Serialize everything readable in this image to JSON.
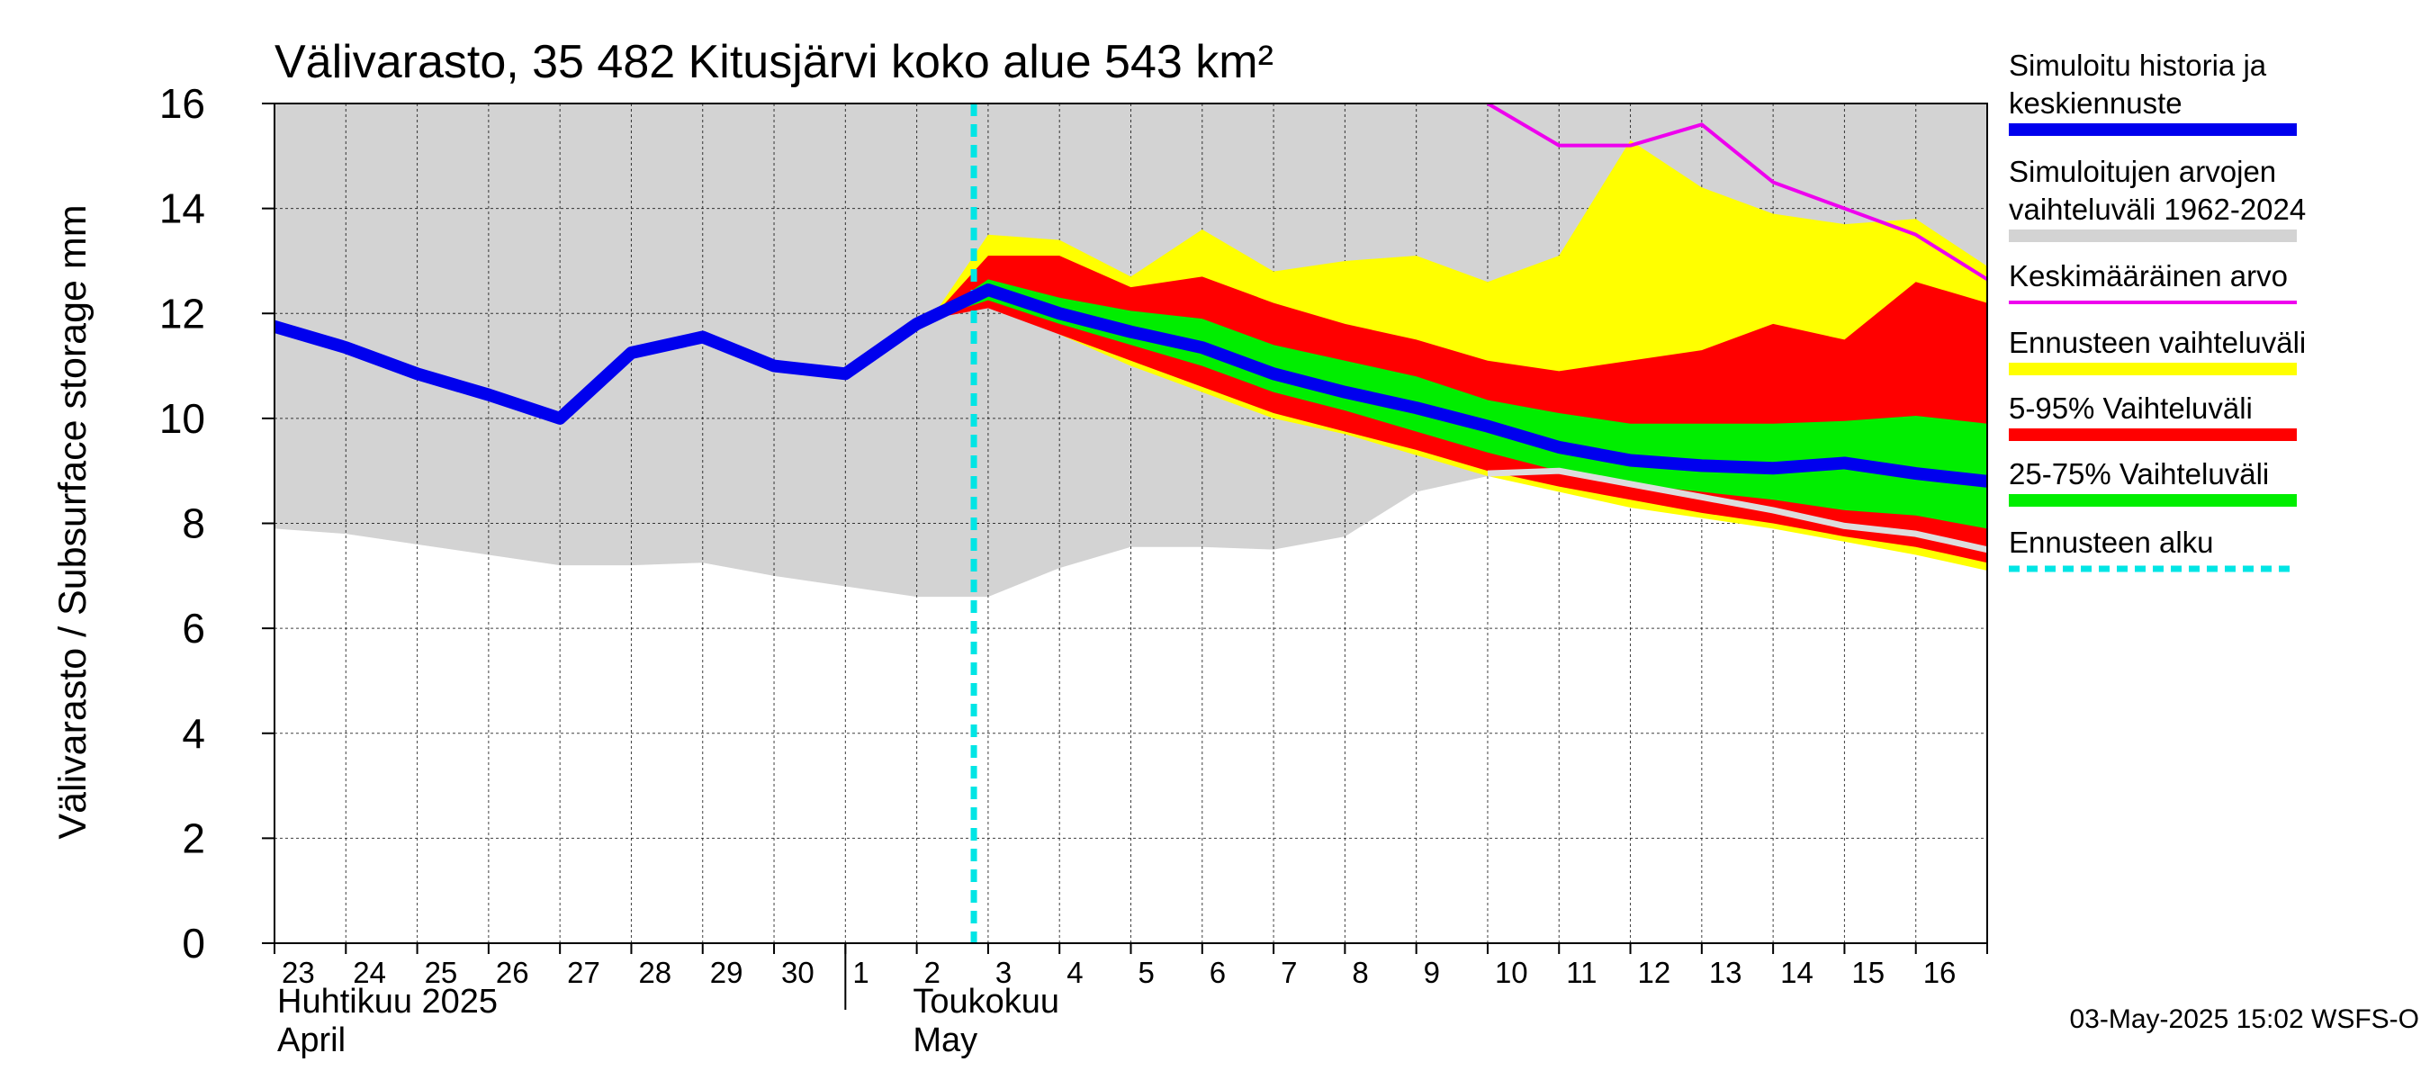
{
  "chart_data": {
    "type": "area",
    "title": "Välivarasto, 35 482 Kitusjärvi koko alue 543 km²",
    "ylabel": "Välivarasto / Subsurface storage  mm",
    "ylim": [
      0,
      16
    ],
    "yticks": [
      0,
      2,
      4,
      6,
      8,
      10,
      12,
      14,
      16
    ],
    "grid": true,
    "x_start_day": 23,
    "x_end_day": 47,
    "x_tick_labels": [
      "23",
      "24",
      "25",
      "26",
      "27",
      "28",
      "29",
      "30",
      "1",
      "2",
      "3",
      "4",
      "5",
      "6",
      "7",
      "8",
      "9",
      "10",
      "11",
      "12",
      "13",
      "14",
      "15",
      "16"
    ],
    "month_labels": [
      {
        "fi": "Huhtikuu  2025",
        "en": "April"
      },
      {
        "fi": "Toukokuu",
        "en": "May"
      }
    ],
    "forecast_start_day": 32.8,
    "history_range": {
      "x": [
        23,
        24,
        25,
        26,
        27,
        28,
        29,
        30,
        31,
        32,
        33,
        34,
        35,
        36,
        37,
        38,
        39,
        40,
        41,
        42,
        43,
        44,
        45,
        46,
        47
      ],
      "lower": [
        7.9,
        7.8,
        7.6,
        7.4,
        7.2,
        7.2,
        7.25,
        7.0,
        6.8,
        6.6,
        6.6,
        7.15,
        7.55,
        7.55,
        7.5,
        7.75,
        8.6,
        8.9,
        9.0,
        8.85,
        8.65,
        8.45,
        8.15,
        7.8,
        7.5
      ],
      "upper": [
        16,
        16,
        16,
        16,
        16,
        16,
        16,
        16,
        16,
        16,
        16,
        16,
        16,
        16,
        16,
        16,
        16,
        16,
        16,
        16,
        16,
        16,
        16,
        16,
        16
      ]
    },
    "forecast_range": {
      "x": [
        32.2,
        33,
        34,
        35,
        36,
        37,
        38,
        39,
        40,
        41,
        42,
        43,
        44,
        45,
        46,
        47
      ],
      "lower": [
        11.9,
        12.2,
        11.6,
        11.0,
        10.5,
        10.0,
        9.7,
        9.3,
        8.9,
        8.6,
        8.3,
        8.1,
        7.9,
        7.65,
        7.4,
        7.1
      ],
      "upper": [
        11.9,
        13.5,
        13.4,
        12.7,
        13.6,
        12.8,
        13.0,
        13.1,
        12.6,
        13.1,
        15.3,
        14.4,
        13.9,
        13.7,
        13.8,
        12.9
      ]
    },
    "band_5_95": {
      "x": [
        32.2,
        33,
        34,
        35,
        36,
        37,
        38,
        39,
        40,
        41,
        42,
        43,
        44,
        45,
        46,
        47
      ],
      "lower": [
        11.9,
        12.1,
        11.6,
        11.1,
        10.6,
        10.1,
        9.75,
        9.4,
        9.0,
        8.7,
        8.45,
        8.2,
        8.0,
        7.75,
        7.55,
        7.25
      ],
      "upper": [
        11.9,
        13.1,
        13.1,
        12.5,
        12.7,
        12.2,
        11.8,
        11.5,
        11.1,
        10.9,
        11.1,
        11.3,
        11.8,
        11.5,
        12.6,
        12.2
      ]
    },
    "band_25_75": {
      "x": [
        32.2,
        33,
        34,
        35,
        36,
        37,
        38,
        39,
        40,
        41,
        42,
        43,
        44,
        45,
        46,
        47
      ],
      "lower": [
        11.9,
        12.25,
        11.8,
        11.4,
        11.0,
        10.5,
        10.15,
        9.75,
        9.35,
        9.0,
        8.75,
        8.6,
        8.45,
        8.25,
        8.15,
        7.9
      ],
      "upper": [
        11.9,
        12.65,
        12.3,
        12.05,
        11.9,
        11.4,
        11.1,
        10.8,
        10.35,
        10.1,
        9.9,
        9.9,
        9.9,
        9.95,
        10.05,
        9.9
      ]
    },
    "series": [
      {
        "name": "Simuloitu historia ja keskiennuste",
        "color": "#0000ee",
        "x": [
          23,
          24,
          25,
          26,
          27,
          28,
          29,
          30,
          31,
          32,
          33,
          34,
          35,
          36,
          37,
          38,
          39,
          40,
          41,
          42,
          43,
          44,
          45,
          46,
          47
        ],
        "y": [
          11.75,
          11.35,
          10.85,
          10.45,
          10.0,
          11.25,
          11.55,
          11.0,
          10.85,
          11.8,
          12.45,
          12.0,
          11.65,
          11.35,
          10.85,
          10.5,
          10.2,
          9.85,
          9.45,
          9.2,
          9.1,
          9.05,
          9.15,
          8.95,
          8.8
        ]
      },
      {
        "name": "Keskimääräinen arvo",
        "color": "#ee00ee",
        "x": [
          40,
          41,
          42,
          43,
          44,
          45,
          46,
          47
        ],
        "y": [
          16.0,
          15.2,
          15.2,
          15.6,
          14.5,
          14.0,
          13.5,
          12.65
        ]
      },
      {
        "name": "Median path",
        "color": "#dddddd",
        "x": [
          40,
          41,
          42,
          43,
          44,
          45,
          46,
          47
        ],
        "y": [
          8.95,
          9.0,
          8.75,
          8.5,
          8.25,
          7.95,
          7.8,
          7.5
        ]
      }
    ],
    "colors": {
      "history_range": "#d3d3d3",
      "forecast_range": "#ffff00",
      "band_5_95": "#ff0000",
      "band_25_75": "#00ee00",
      "mean_line": "#0000ee",
      "average": "#ee00ee",
      "forecast_start": "#00e5e5",
      "median": "#dddddd"
    },
    "legend": [
      {
        "label_lines": [
          "Simuloitu historia ja",
          "keskiennuste"
        ],
        "color": "#0000ee",
        "style": "line"
      },
      {
        "label_lines": [
          "Simuloitujen arvojen",
          "vaihteluväli 1962-2024"
        ],
        "color": "#d3d3d3",
        "style": "line"
      },
      {
        "label_lines": [
          "Keskimääräinen arvo"
        ],
        "color": "#ee00ee",
        "style": "thin"
      },
      {
        "label_lines": [
          "Ennusteen vaihteluväli"
        ],
        "color": "#ffff00",
        "style": "line"
      },
      {
        "label_lines": [
          "5-95% Vaihteluväli"
        ],
        "color": "#ff0000",
        "style": "line"
      },
      {
        "label_lines": [
          "25-75% Vaihteluväli"
        ],
        "color": "#00ee00",
        "style": "line"
      },
      {
        "label_lines": [
          "Ennusteen alku"
        ],
        "color": "#00e5e5",
        "style": "dash"
      }
    ],
    "timestamp": "03-May-2025 15:02 WSFS-O"
  }
}
